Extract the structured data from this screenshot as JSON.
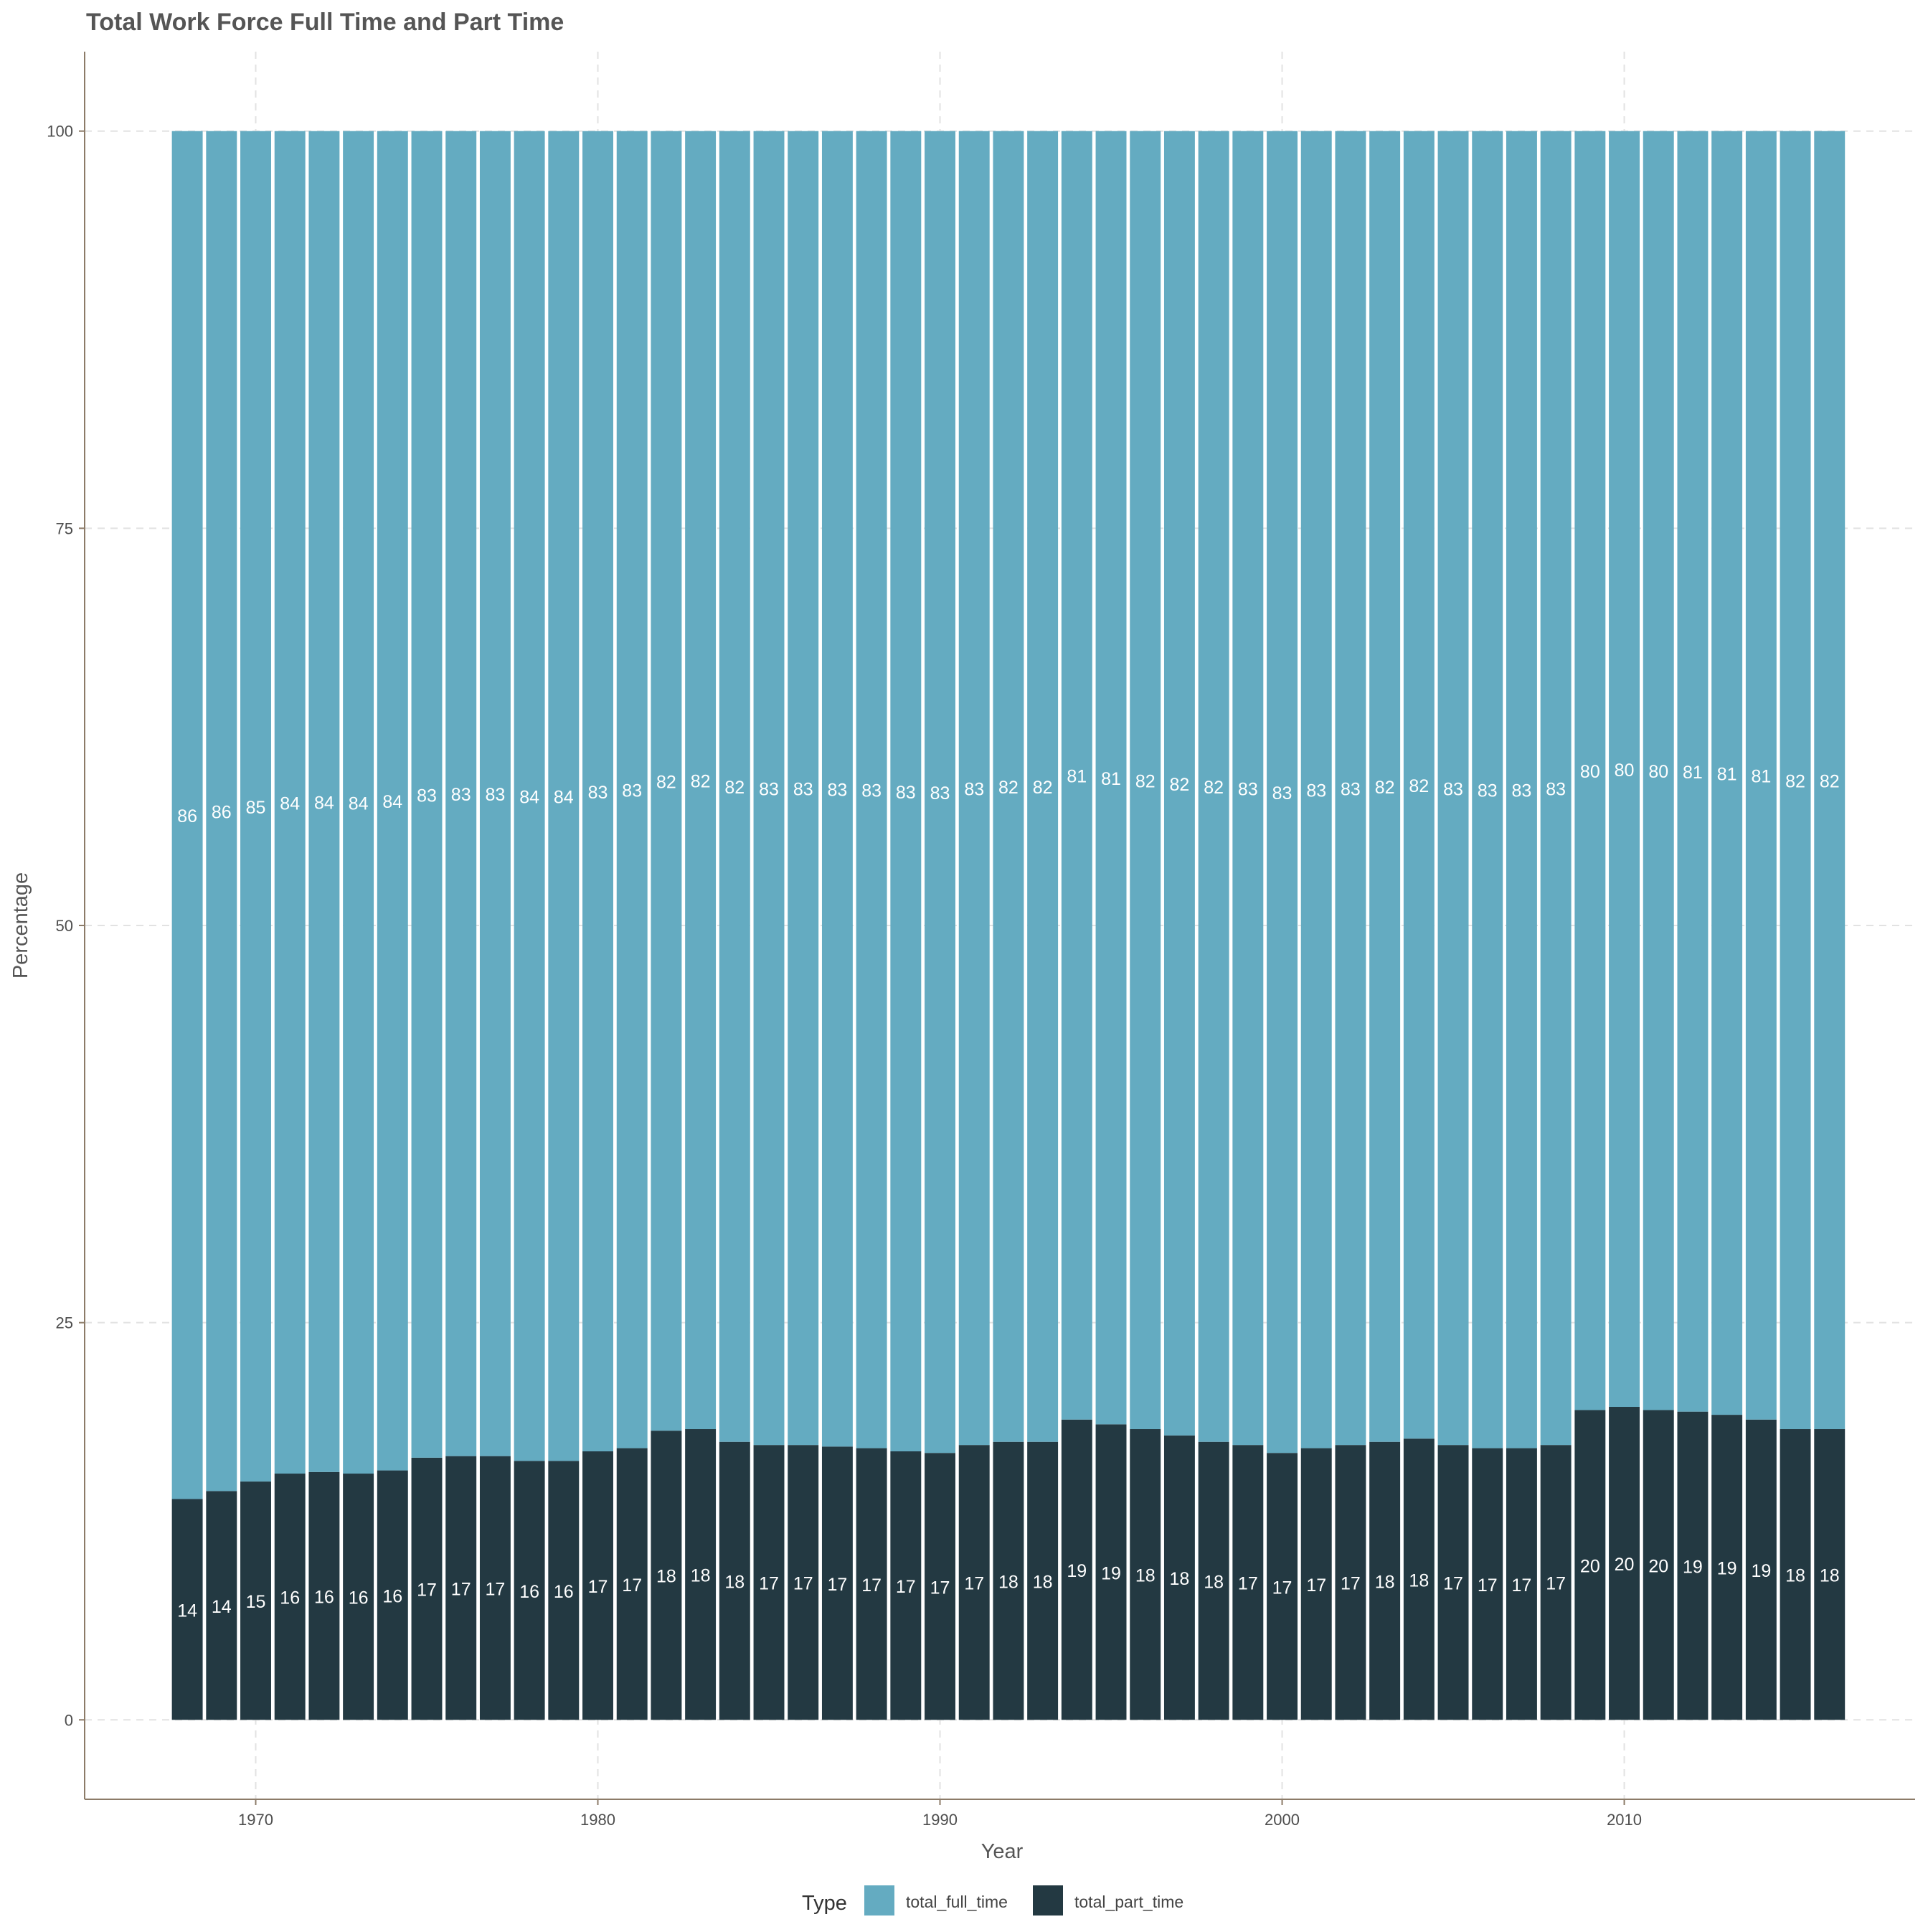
{
  "chart_data": {
    "type": "bar",
    "stacked": true,
    "title": "Total Work Force Full Time and Part Time",
    "xlabel": "Year",
    "ylabel": "Percentage",
    "x": [
      1968,
      1969,
      1970,
      1971,
      1972,
      1973,
      1974,
      1975,
      1976,
      1977,
      1978,
      1979,
      1980,
      1981,
      1982,
      1983,
      1984,
      1985,
      1986,
      1987,
      1988,
      1989,
      1990,
      1991,
      1992,
      1993,
      1994,
      1995,
      1996,
      1997,
      1998,
      1999,
      2000,
      2001,
      2002,
      2003,
      2004,
      2005,
      2006,
      2007,
      2008,
      2009,
      2010,
      2011,
      2012,
      2013,
      2014,
      2015,
      2016
    ],
    "x_ticks": [
      "1970",
      "1980",
      "1990",
      "2000",
      "2010"
    ],
    "y_ticks": [
      "0",
      "25",
      "50",
      "75",
      "100"
    ],
    "xlim": [
      1965,
      2018.5
    ],
    "ylim": [
      -5,
      105
    ],
    "grid": true,
    "legend_position": "bottom",
    "legend_title": "Type",
    "series": [
      {
        "name": "total_part_time",
        "color": "#233942",
        "values": [
          13.9,
          14.4,
          15.0,
          15.5,
          15.6,
          15.5,
          15.7,
          16.5,
          16.6,
          16.6,
          16.3,
          16.3,
          16.9,
          17.1,
          18.2,
          18.3,
          17.5,
          17.3,
          17.3,
          17.2,
          17.1,
          16.9,
          16.8,
          17.3,
          17.5,
          17.5,
          18.9,
          18.6,
          18.3,
          17.9,
          17.5,
          17.3,
          16.8,
          17.1,
          17.3,
          17.5,
          17.7,
          17.3,
          17.1,
          17.1,
          17.3,
          19.5,
          19.7,
          19.5,
          19.4,
          19.2,
          18.9,
          18.3,
          18.3
        ],
        "labels": [
          "14",
          "14",
          "15",
          "16",
          "16",
          "16",
          "16",
          "17",
          "17",
          "17",
          "16",
          "16",
          "17",
          "17",
          "18",
          "18",
          "18",
          "17",
          "17",
          "17",
          "17",
          "17",
          "17",
          "17",
          "18",
          "18",
          "19",
          "19",
          "18",
          "18",
          "18",
          "17",
          "17",
          "17",
          "17",
          "18",
          "18",
          "17",
          "17",
          "17",
          "17",
          "20",
          "20",
          "20",
          "19",
          "19",
          "19",
          "18",
          "18"
        ]
      },
      {
        "name": "total_full_time",
        "color": "#64abc1",
        "values": [
          86.1,
          85.6,
          85.0,
          84.5,
          84.4,
          84.5,
          84.3,
          83.5,
          83.4,
          83.4,
          83.7,
          83.7,
          83.1,
          82.9,
          81.8,
          81.7,
          82.5,
          82.7,
          82.7,
          82.8,
          82.9,
          83.1,
          83.2,
          82.7,
          82.5,
          82.5,
          81.1,
          81.4,
          81.7,
          82.1,
          82.5,
          82.7,
          83.2,
          82.9,
          82.7,
          82.5,
          82.3,
          82.7,
          82.9,
          82.9,
          82.7,
          80.5,
          80.3,
          80.5,
          80.6,
          80.8,
          81.1,
          81.7,
          81.7
        ],
        "labels": [
          "86",
          "86",
          "85",
          "84",
          "84",
          "84",
          "84",
          "83",
          "83",
          "83",
          "84",
          "84",
          "83",
          "83",
          "82",
          "82",
          "82",
          "83",
          "83",
          "83",
          "83",
          "83",
          "83",
          "83",
          "82",
          "82",
          "81",
          "81",
          "82",
          "82",
          "82",
          "83",
          "83",
          "83",
          "83",
          "82",
          "82",
          "83",
          "83",
          "83",
          "83",
          "80",
          "80",
          "80",
          "81",
          "81",
          "81",
          "82",
          "82"
        ]
      }
    ]
  }
}
